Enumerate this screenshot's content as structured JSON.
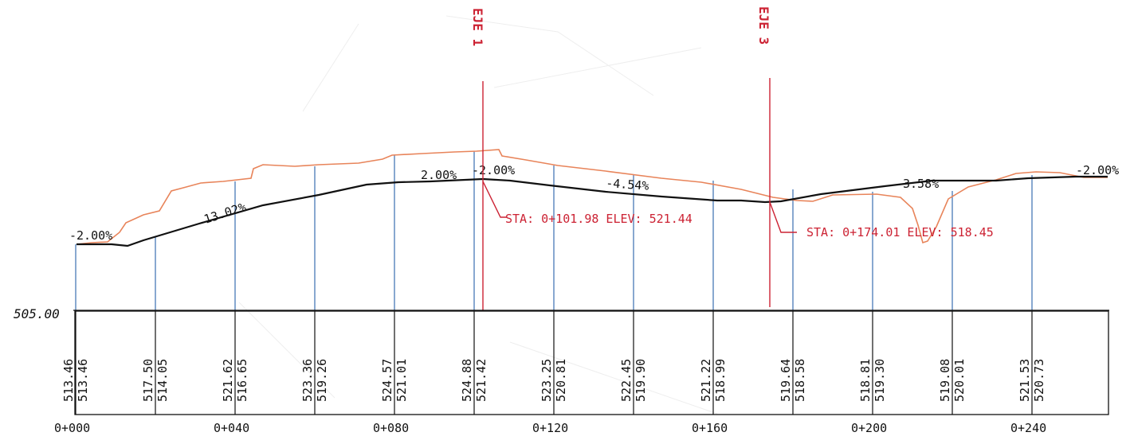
{
  "datum_label": "505.00",
  "axis_labels": [
    {
      "id": "axis-name-1",
      "text": "EJE 1",
      "station": 102
    },
    {
      "id": "axis-name-3",
      "text": "EJE 3",
      "station": 174
    }
  ],
  "callouts": [
    {
      "id": "callout-sta-1",
      "text": "STA: 0+101.98 ELEV: 521.44"
    },
    {
      "id": "callout-sta-3",
      "text": "STA: 0+174.01 ELEV: 518.45"
    }
  ],
  "grade_labels": [
    "-2.00%",
    "13.02%",
    "2.00%",
    "-2.00%",
    "-4.54%",
    "3.58%",
    "-2.00%"
  ],
  "stations": [
    {
      "station": 0,
      "label": "0+000",
      "a": "513.46",
      "b": "513.46"
    },
    {
      "station": 20,
      "label": "",
      "a": "517.50",
      "b": "514.05"
    },
    {
      "station": 40,
      "label": "0+040",
      "a": "521.62",
      "b": "516.65"
    },
    {
      "station": 60,
      "label": "",
      "a": "523.36",
      "b": "519.26"
    },
    {
      "station": 80,
      "label": "0+080",
      "a": "524.57",
      "b": "521.01"
    },
    {
      "station": 100,
      "label": "",
      "a": "524.88",
      "b": "521.42"
    },
    {
      "station": 120,
      "label": "0+120",
      "a": "523.25",
      "b": "520.81"
    },
    {
      "station": 140,
      "label": "",
      "a": "522.45",
      "b": "519.90"
    },
    {
      "station": 160,
      "label": "0+160",
      "a": "521.22",
      "b": "518.99"
    },
    {
      "station": 180,
      "label": "",
      "a": "519.64",
      "b": "518.58"
    },
    {
      "station": 200,
      "label": "0+200",
      "a": "518.81",
      "b": "519.30"
    },
    {
      "station": 220,
      "label": "",
      "a": "519.08",
      "b": "520.01"
    },
    {
      "station": 240,
      "label": "0+240",
      "a": "521.53",
      "b": "520.73"
    }
  ],
  "colors": {
    "ground": "#e8845a",
    "grade": "#111111",
    "axis": "#cc2233",
    "station_line": "#3a6fb0",
    "table": "#111111"
  }
}
